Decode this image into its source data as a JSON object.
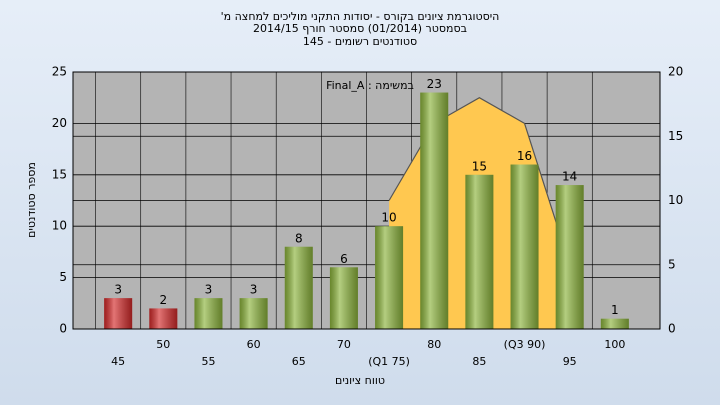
{
  "chart_data": {
    "type": "bar",
    "title": [
      "'היסטוגרמת ציונים בקורס - יסודות התקני מוליכים למחצה מ",
      "בסמסטר  (01/2014)  סמסטר חורף 2014/15",
      "סטודנטים רשומים - 145"
    ],
    "annotation": "Final_A : במשימה",
    "y_label": "מספר סטודנטים",
    "x_label": "טווח ציונים",
    "categories": [
      "45",
      "50",
      "55",
      "60",
      "65",
      "70",
      "(Q1 75)",
      "80",
      "85",
      "(Q3 90)",
      "95",
      "100"
    ],
    "values": [
      3,
      2,
      3,
      3,
      8,
      6,
      10,
      23,
      15,
      16,
      14,
      1
    ],
    "colors": [
      "#d42a2a",
      "#d42a2a",
      "#8cb43c",
      "#8cb43c",
      "#8cb43c",
      "#8cb43c",
      "#8cb43c",
      "#8cb43c",
      "#8cb43c",
      "#8cb43c",
      "#8cb43c",
      "#8cb43c"
    ],
    "ylim": [
      0,
      25
    ],
    "yticks": [
      0,
      5,
      10,
      15,
      20,
      25
    ],
    "y2lim": [
      0,
      20
    ],
    "y2ticks": [
      0,
      5,
      10,
      15,
      20
    ],
    "grid": true,
    "overlay": {
      "type": "area",
      "axis": "y2",
      "color": "#ffc850",
      "line_color": "#555555",
      "values": [
        null,
        null,
        null,
        null,
        null,
        null,
        10,
        16,
        18,
        16,
        5,
        null
      ]
    }
  }
}
